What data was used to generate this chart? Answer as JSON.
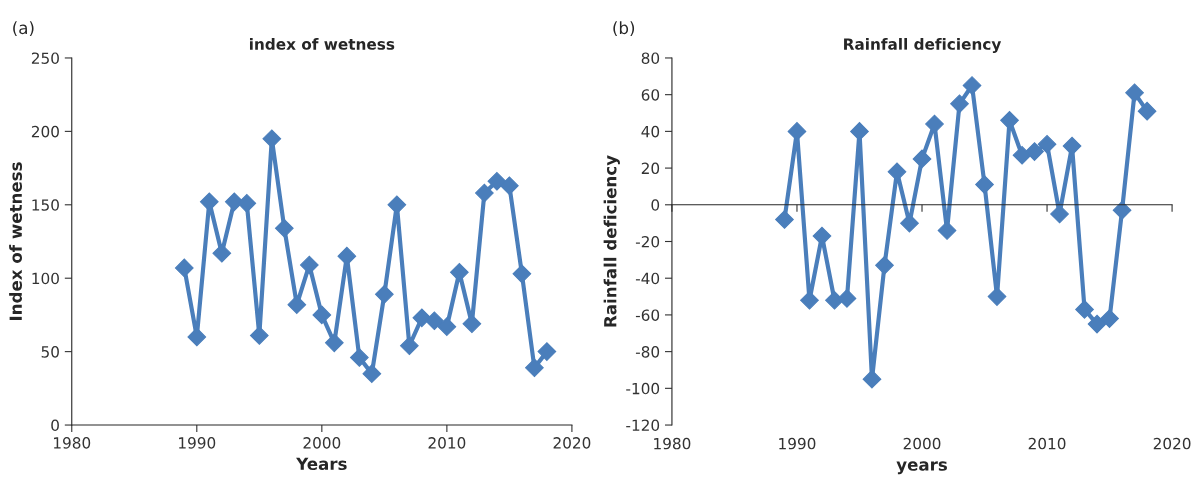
{
  "chart_data": [
    {
      "type": "line",
      "title": "index of wetness",
      "xlabel": "Years",
      "ylabel": "Index of wetness",
      "annotations": [
        "(a)"
      ],
      "x": [
        1989,
        1990,
        1991,
        1992,
        1993,
        1994,
        1995,
        1996,
        1997,
        1998,
        1999,
        2000,
        2001,
        2002,
        2003,
        2004,
        2005,
        2006,
        2007,
        2008,
        2009,
        2010,
        2011,
        2012,
        2013,
        2014,
        2015,
        2016,
        2017,
        2018
      ],
      "series": [
        {
          "color": "#4a7ebb",
          "values": [
            107,
            60,
            152,
            117,
            152,
            151,
            61,
            195,
            134,
            82,
            109,
            75,
            56,
            115,
            46,
            35,
            89,
            150,
            54,
            73,
            71,
            67,
            104,
            69,
            158,
            166,
            163,
            103,
            39,
            50
          ]
        }
      ],
      "xlim": [
        1980,
        2020
      ],
      "xticks": [
        1980,
        1990,
        2000,
        2010,
        2020
      ],
      "ylim": [
        0,
        250
      ],
      "yticks": [
        0,
        50,
        100,
        150,
        200,
        250
      ],
      "marker": "diamond",
      "line_style": "solid"
    },
    {
      "type": "line",
      "title": "Rainfall deficiency",
      "xlabel": "years",
      "ylabel": "Rainfall deficiency",
      "annotations": [
        "(b)"
      ],
      "x": [
        1989,
        1990,
        1991,
        1992,
        1993,
        1994,
        1995,
        1996,
        1997,
        1998,
        1999,
        2000,
        2001,
        2002,
        2003,
        2004,
        2005,
        2006,
        2007,
        2008,
        2009,
        2010,
        2011,
        2012,
        2013,
        2014,
        2015,
        2016,
        2017,
        2018
      ],
      "series": [
        {
          "color": "#4a7ebb",
          "values": [
            -8,
            40,
            -52,
            -17,
            -52,
            -51,
            40,
            -95,
            -33,
            18,
            -10,
            25,
            44,
            -14,
            55,
            65,
            11,
            -50,
            46,
            27,
            29,
            33,
            -5,
            32,
            -57,
            -65,
            -62,
            -3,
            61,
            51
          ]
        }
      ],
      "xlim": [
        1980,
        2020
      ],
      "xticks": [
        1980,
        1990,
        2000,
        2010,
        2020
      ],
      "ylim": [
        -120,
        80
      ],
      "yticks": [
        -120,
        -100,
        -80,
        -60,
        -40,
        -20,
        0,
        20,
        40,
        60,
        80
      ],
      "marker": "diamond",
      "line_style": "solid"
    }
  ]
}
